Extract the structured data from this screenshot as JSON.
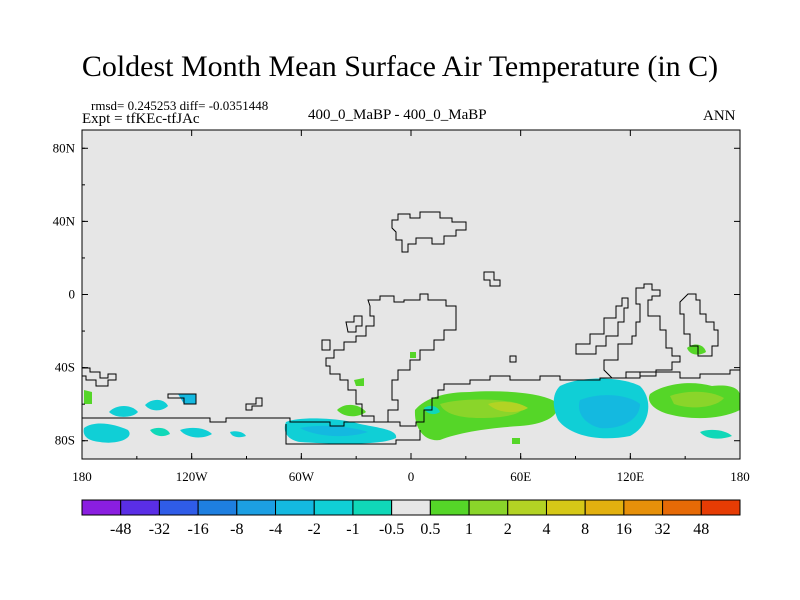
{
  "title": "Coldest Month Mean Surface Air Temperature (in C)",
  "stats": "rmsd= 0.245253 diff= -0.0351448",
  "experiment": "Expt = tfKEc-tfJAc",
  "period": "400_0_MaBP - 400_0_MaBP",
  "season": "ANN",
  "map": {
    "background_color": "#e6e6e6",
    "lon_range": [
      -180,
      180
    ],
    "lat_range": [
      -90,
      90
    ],
    "lat_ticks": [
      {
        "value": 80,
        "label": "80N"
      },
      {
        "value": 40,
        "label": "40N"
      },
      {
        "value": 0,
        "label": "0"
      },
      {
        "value": -40,
        "label": "40S"
      },
      {
        "value": -80,
        "label": "80S"
      }
    ],
    "lon_ticks": [
      {
        "value": -180,
        "label": "180"
      },
      {
        "value": -120,
        "label": "120W"
      },
      {
        "value": -60,
        "label": "60W"
      },
      {
        "value": 0,
        "label": "0"
      },
      {
        "value": 60,
        "label": "60E"
      },
      {
        "value": 120,
        "label": "120E"
      },
      {
        "value": 180,
        "label": "180"
      }
    ]
  },
  "colorbar": {
    "colors": [
      "#8a1ee0",
      "#5a2ee6",
      "#2f5ce8",
      "#1e7fe0",
      "#1c9fe3",
      "#14b9e0",
      "#10cfd6",
      "#10d8b8",
      "#e6e6e6",
      "#55d628",
      "#8ad52a",
      "#b3d324",
      "#d6c817",
      "#e2b00f",
      "#e6900a",
      "#e66a06",
      "#e63c04"
    ],
    "labels": [
      "-48",
      "-32",
      "-16",
      "-8",
      "-4",
      "-2",
      "-1",
      "-0.5",
      "0.5",
      "1",
      "2",
      "4",
      "8",
      "16",
      "32",
      "48"
    ]
  }
}
